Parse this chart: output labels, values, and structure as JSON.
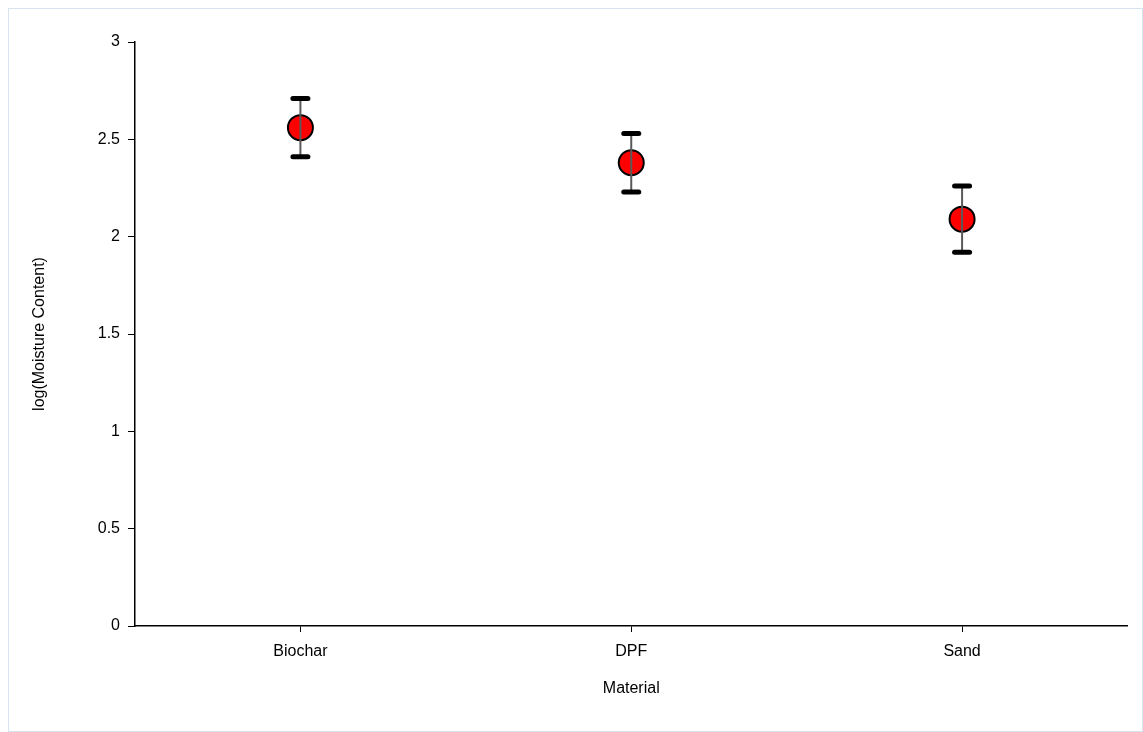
{
  "chart_data": {
    "type": "scatter",
    "categories": [
      "Biochar",
      "DPF",
      "Sand"
    ],
    "values": [
      2.56,
      2.38,
      2.09
    ],
    "errors": [
      0.15,
      0.15,
      0.17
    ],
    "color": "#ff0000",
    "marker": "circle",
    "xlabel": "Material",
    "ylabel": "log(Moisture Content)",
    "ylim": [
      0,
      3
    ],
    "yticks": [
      0,
      0.5,
      1,
      1.5,
      2,
      2.5,
      3
    ]
  }
}
